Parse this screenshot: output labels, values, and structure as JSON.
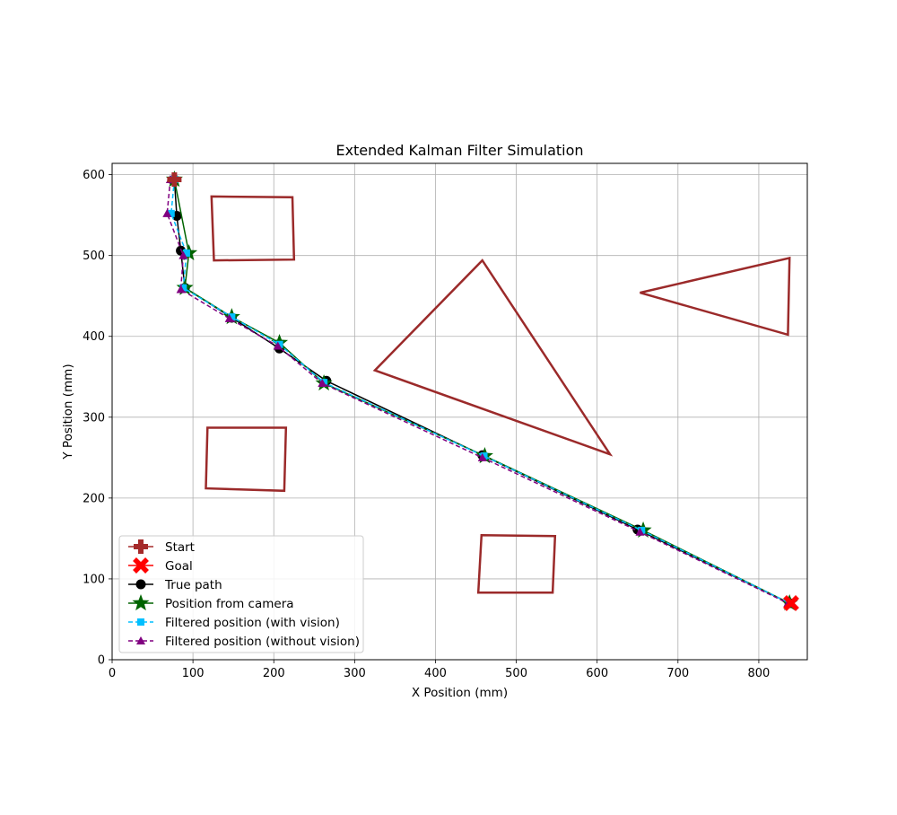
{
  "chart_data": {
    "type": "line",
    "title": "Extended Kalman Filter Simulation",
    "xlabel": "X Position (mm)",
    "ylabel": "Y Position (mm)",
    "xlim": [
      0,
      860
    ],
    "ylim": [
      0,
      614
    ],
    "xticks": [
      0,
      100,
      200,
      300,
      400,
      500,
      600,
      700,
      800
    ],
    "yticks": [
      0,
      100,
      200,
      300,
      400,
      500,
      600
    ],
    "grid": true,
    "legend_position": "lower-left",
    "obstacles": [
      {
        "name": "obstacle-1",
        "vertices": [
          [
            123,
            573
          ],
          [
            223,
            572
          ],
          [
            225,
            495
          ],
          [
            126,
            494
          ]
        ]
      },
      {
        "name": "obstacle-2",
        "vertices": [
          [
            325,
            358
          ],
          [
            458,
            494
          ],
          [
            616,
            254
          ]
        ]
      },
      {
        "name": "obstacle-3",
        "vertices": [
          [
            653,
            454
          ],
          [
            838,
            497
          ],
          [
            836,
            402
          ]
        ]
      },
      {
        "name": "obstacle-4",
        "vertices": [
          [
            118,
            287
          ],
          [
            215,
            287
          ],
          [
            213,
            209
          ],
          [
            116,
            212
          ]
        ]
      },
      {
        "name": "obstacle-5",
        "vertices": [
          [
            457,
            154
          ],
          [
            548,
            153
          ],
          [
            545,
            83
          ],
          [
            453,
            83
          ]
        ]
      }
    ],
    "obstacle_color": "#9b2a2a",
    "series": [
      {
        "name": "Start",
        "kind": "start",
        "color": "#a52a2a",
        "x": [
          77
        ],
        "y": [
          594
        ]
      },
      {
        "name": "Goal",
        "kind": "goal",
        "color": "#ff0000",
        "x": [
          840
        ],
        "y": [
          70
        ]
      },
      {
        "name": "True path",
        "kind": "true",
        "color": "#000000",
        "x": [
          77,
          80,
          85,
          90,
          148,
          207,
          265,
          458,
          650,
          838
        ],
        "y": [
          594,
          549,
          506,
          460,
          423,
          385,
          345,
          253,
          161,
          70
        ]
      },
      {
        "name": "Position from camera",
        "kind": "camera",
        "color": "#006400",
        "x": [
          77,
          95,
          90,
          148,
          207,
          262,
          461,
          657,
          838
        ],
        "y": [
          594,
          503,
          460,
          424,
          392,
          342,
          252,
          160,
          70
        ]
      },
      {
        "name": "Filtered position (with vision)",
        "kind": "filtered-vision",
        "color": "#00bfff",
        "x": [
          77,
          73,
          92,
          88,
          148,
          207,
          262,
          460,
          655,
          838
        ],
        "y": [
          594,
          552,
          503,
          460,
          424,
          390,
          343,
          252,
          160,
          70
        ]
      },
      {
        "name": "Filtered position (without vision)",
        "kind": "filtered-novision",
        "color": "#800080",
        "x": [
          72,
          68,
          88,
          85,
          145,
          205,
          260,
          458,
          653,
          836
        ],
        "y": [
          594,
          552,
          500,
          458,
          422,
          388,
          342,
          250,
          158,
          70
        ]
      }
    ]
  }
}
